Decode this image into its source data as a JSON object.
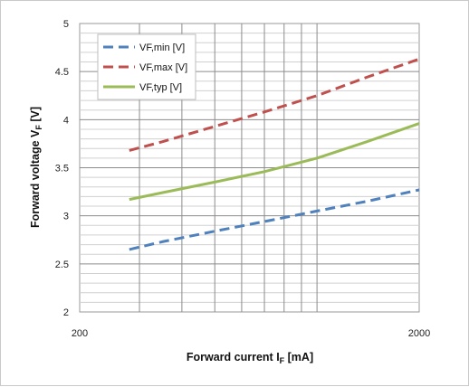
{
  "chart_data": {
    "type": "line",
    "xscale": "log",
    "xlim": [
      200,
      2000
    ],
    "ylim": [
      2,
      5
    ],
    "x_tick_labels": [
      "200",
      "2000"
    ],
    "y_tick_labels": [
      "2",
      "2.5",
      "3",
      "3.5",
      "4",
      "4.5",
      "5"
    ],
    "grid": true,
    "legend_position": "top-left",
    "xlabel": {
      "prefix": "Forward current I",
      "sub": "F",
      "suffix": " [mA]"
    },
    "ylabel": {
      "prefix": "Forward voltage V",
      "sub": "F",
      "suffix": " [V]"
    },
    "series": [
      {
        "name": "VF,min  [V]",
        "color": "#4f81bd",
        "style": "dashed",
        "x": [
          280,
          350,
          500,
          700,
          1000,
          1400,
          2000
        ],
        "y": [
          2.65,
          2.73,
          2.84,
          2.94,
          3.05,
          3.15,
          3.27
        ]
      },
      {
        "name": "VF,max  [V]",
        "color": "#c0504d",
        "style": "dashed",
        "x": [
          280,
          350,
          500,
          700,
          1000,
          1400,
          2000
        ],
        "y": [
          3.68,
          3.77,
          3.93,
          4.08,
          4.25,
          4.44,
          4.63
        ]
      },
      {
        "name": "VF,typ  [V]",
        "color": "#9bbb59",
        "style": "solid",
        "x": [
          280,
          350,
          500,
          700,
          1000,
          1400,
          2000
        ],
        "y": [
          3.17,
          3.24,
          3.35,
          3.46,
          3.6,
          3.77,
          3.96
        ]
      }
    ]
  }
}
